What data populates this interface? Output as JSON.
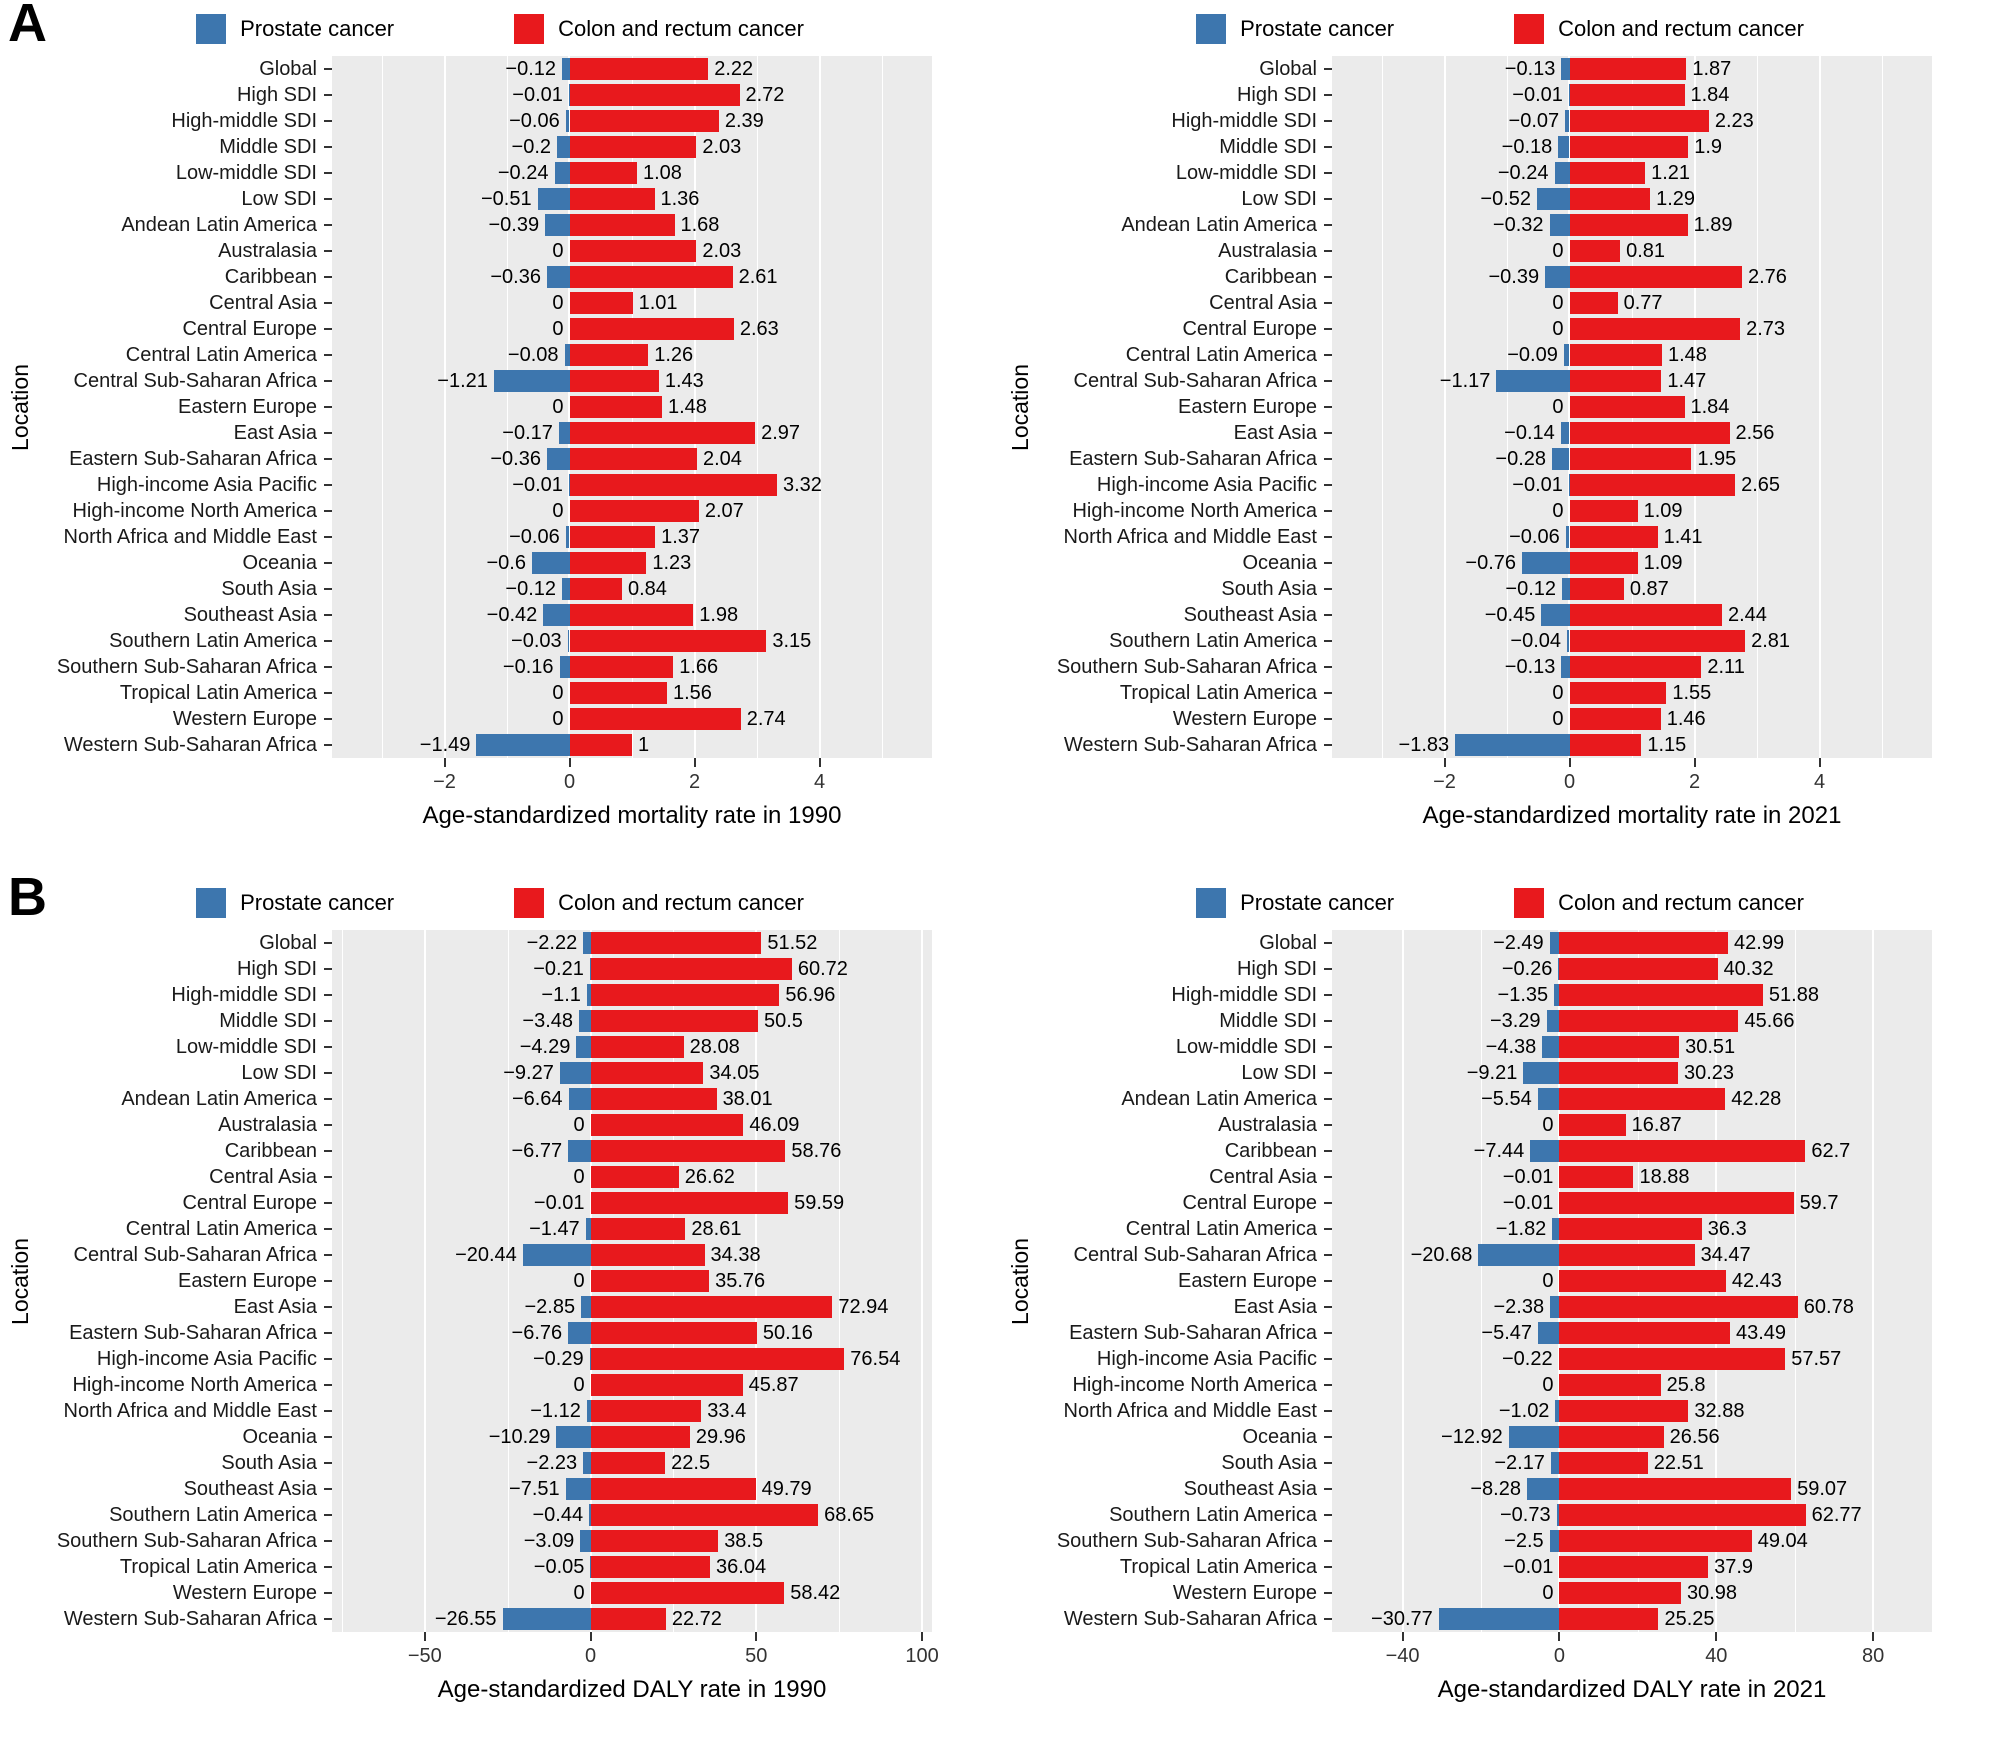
{
  "panels": {
    "a": "A",
    "b": "B"
  },
  "ylabel": "Location",
  "legend": {
    "prostate": "Prostate cancer",
    "colorectal": "Colon and rectum cancer"
  },
  "colors": {
    "blue": "#3D76AE",
    "red": "#E8191D",
    "panel_bg": "#EBEBEB",
    "tick": "#333333"
  },
  "categories": [
    "Global",
    "High SDI",
    "High-middle SDI",
    "Middle SDI",
    "Low-middle SDI",
    "Low SDI",
    "Andean Latin America",
    "Australasia",
    "Caribbean",
    "Central Asia",
    "Central Europe",
    "Central Latin America",
    "Central Sub-Saharan Africa",
    "Eastern Europe",
    "East Asia",
    "Eastern Sub-Saharan Africa",
    "High-income Asia Pacific",
    "High-income North America",
    "North Africa and Middle East",
    "Oceania",
    "South Asia",
    "Southeast Asia",
    "Southern Latin America",
    "Southern Sub-Saharan Africa",
    "Tropical Latin America",
    "Western Europe",
    "Western Sub-Saharan Africa"
  ],
  "chart_data": [
    {
      "type": "bar",
      "orientation": "diverging-horizontal",
      "xlabel": "Age-standardized mortality rate in 1990",
      "xticks": [
        -2,
        0,
        2,
        4
      ],
      "xlim": [
        -3.8,
        5.8
      ],
      "series": [
        {
          "name": "Prostate cancer",
          "color": "#3D76AE",
          "values": [
            "-0.12",
            "-0.01",
            "-0.06",
            "-0.2",
            "-0.24",
            "-0.51",
            "-0.39",
            "0",
            "-0.36",
            "0",
            "0",
            "-0.08",
            "-1.21",
            "0",
            "-0.17",
            "-0.36",
            "-0.01",
            "0",
            "-0.06",
            "-0.6",
            "-0.12",
            "-0.42",
            "-0.03",
            "-0.16",
            "0",
            "0",
            "-1.49"
          ]
        },
        {
          "name": "Colon and rectum cancer",
          "color": "#E8191D",
          "values": [
            "2.22",
            "2.72",
            "2.39",
            "2.03",
            "1.08",
            "1.36",
            "1.68",
            "2.03",
            "2.61",
            "1.01",
            "2.63",
            "1.26",
            "1.43",
            "1.48",
            "2.97",
            "2.04",
            "3.32",
            "2.07",
            "1.37",
            "1.23",
            "0.84",
            "1.98",
            "3.15",
            "1.66",
            "1.56",
            "2.74",
            "1"
          ]
        }
      ]
    },
    {
      "type": "bar",
      "orientation": "diverging-horizontal",
      "xlabel": "Age-standardized mortality rate in 2021",
      "xticks": [
        -2,
        0,
        2,
        4
      ],
      "xlim": [
        -3.8,
        5.8
      ],
      "series": [
        {
          "name": "Prostate cancer",
          "color": "#3D76AE",
          "values": [
            "-0.13",
            "-0.01",
            "-0.07",
            "-0.18",
            "-0.24",
            "-0.52",
            "-0.32",
            "0",
            "-0.39",
            "0",
            "0",
            "-0.09",
            "-1.17",
            "0",
            "-0.14",
            "-0.28",
            "-0.01",
            "0",
            "-0.06",
            "-0.76",
            "-0.12",
            "-0.45",
            "-0.04",
            "-0.13",
            "0",
            "0",
            "-1.83"
          ]
        },
        {
          "name": "Colon and rectum cancer",
          "color": "#E8191D",
          "values": [
            "1.87",
            "1.84",
            "2.23",
            "1.9",
            "1.21",
            "1.29",
            "1.89",
            "0.81",
            "2.76",
            "0.77",
            "2.73",
            "1.48",
            "1.47",
            "1.84",
            "2.56",
            "1.95",
            "2.65",
            "1.09",
            "1.41",
            "1.09",
            "0.87",
            "2.44",
            "2.81",
            "2.11",
            "1.55",
            "1.46",
            "1.15"
          ]
        }
      ]
    },
    {
      "type": "bar",
      "orientation": "diverging-horizontal",
      "xlabel": "Age-standardized DALY rate in 1990",
      "xticks": [
        -50,
        0,
        50,
        100
      ],
      "xlim": [
        -78,
        103
      ],
      "series": [
        {
          "name": "Prostate cancer",
          "color": "#3D76AE",
          "values": [
            "-2.22",
            "-0.21",
            "-1.1",
            "-3.48",
            "-4.29",
            "-9.27",
            "-6.64",
            "0",
            "-6.77",
            "0",
            "-0.01",
            "-1.47",
            "-20.44",
            "0",
            "-2.85",
            "-6.76",
            "-0.29",
            "0",
            "-1.12",
            "-10.29",
            "-2.23",
            "-7.51",
            "-0.44",
            "-3.09",
            "-0.05",
            "0",
            "-26.55"
          ]
        },
        {
          "name": "Colon and rectum cancer",
          "color": "#E8191D",
          "values": [
            "51.52",
            "60.72",
            "56.96",
            "50.5",
            "28.08",
            "34.05",
            "38.01",
            "46.09",
            "58.76",
            "26.62",
            "59.59",
            "28.61",
            "34.38",
            "35.76",
            "72.94",
            "50.16",
            "76.54",
            "45.87",
            "33.4",
            "29.96",
            "22.5",
            "49.79",
            "68.65",
            "38.5",
            "36.04",
            "58.42",
            "22.72"
          ]
        }
      ]
    },
    {
      "type": "bar",
      "orientation": "diverging-horizontal",
      "xlabel": "Age-standardized DALY rate in 2021",
      "xticks": [
        -40,
        0,
        40,
        80
      ],
      "xlim": [
        -58,
        95
      ],
      "series": [
        {
          "name": "Prostate cancer",
          "color": "#3D76AE",
          "values": [
            "-2.49",
            "-0.26",
            "-1.35",
            "-3.29",
            "-4.38",
            "-9.21",
            "-5.54",
            "0",
            "-7.44",
            "-0.01",
            "-0.01",
            "-1.82",
            "-20.68",
            "0",
            "-2.38",
            "-5.47",
            "-0.22",
            "0",
            "-1.02",
            "-12.92",
            "-2.17",
            "-8.28",
            "-0.73",
            "-2.5",
            "-0.01",
            "0",
            "-30.77"
          ]
        },
        {
          "name": "Colon and rectum cancer",
          "color": "#E8191D",
          "values": [
            "42.99",
            "40.32",
            "51.88",
            "45.66",
            "30.51",
            "30.23",
            "42.28",
            "16.87",
            "62.7",
            "18.88",
            "59.7",
            "36.3",
            "34.47",
            "42.43",
            "60.78",
            "43.49",
            "57.57",
            "25.8",
            "32.88",
            "26.56",
            "22.51",
            "59.07",
            "62.77",
            "49.04",
            "37.9",
            "30.98",
            "25.25"
          ]
        }
      ]
    }
  ]
}
